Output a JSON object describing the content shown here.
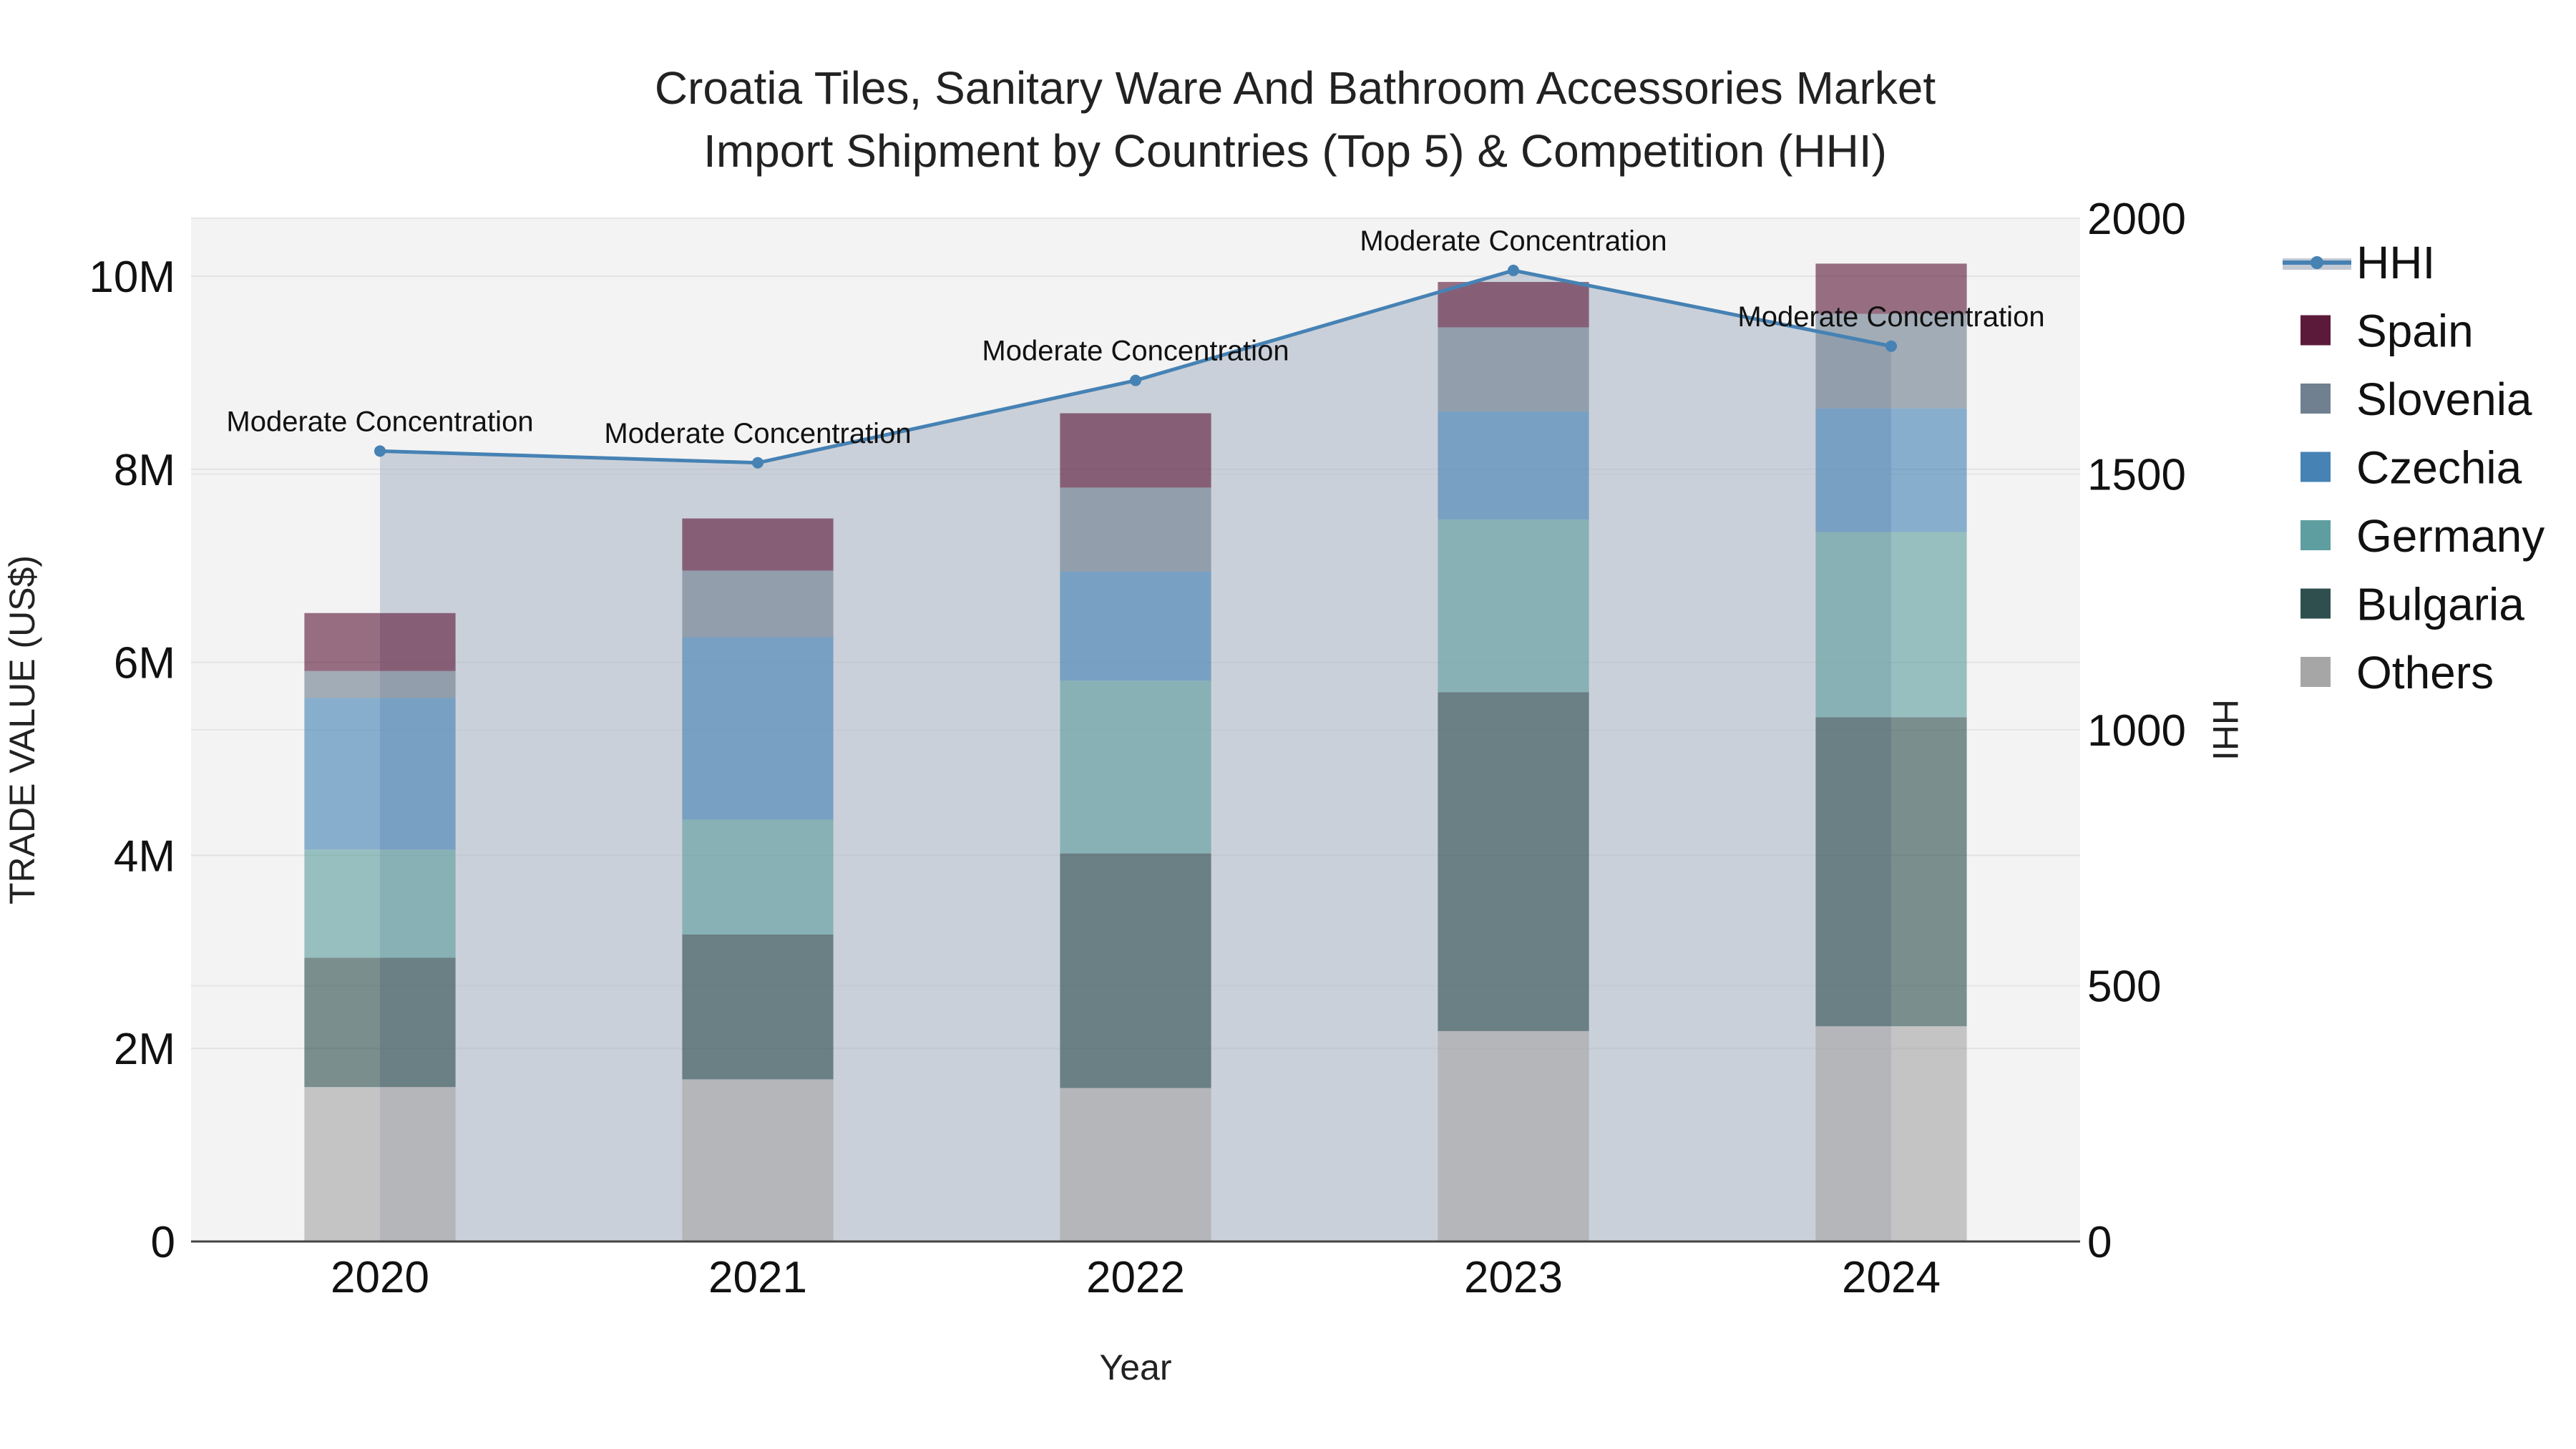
{
  "chart_data": {
    "type": "bar",
    "title_line1": "Croatia Tiles, Sanitary Ware And Bathroom Accessories Market",
    "title_line2": "Import Shipment by Countries (Top 5) & Competition (HHI)",
    "xlabel": "Year",
    "ylabel": "TRADE VALUE (US$)",
    "y2label": "HHI",
    "categories": [
      "2020",
      "2021",
      "2022",
      "2023",
      "2024"
    ],
    "ylim": [
      0,
      10600000
    ],
    "y2lim": [
      0,
      2000
    ],
    "yticks": [
      {
        "value": 0,
        "label": "0"
      },
      {
        "value": 2000000,
        "label": "2M"
      },
      {
        "value": 4000000,
        "label": "4M"
      },
      {
        "value": 6000000,
        "label": "6M"
      },
      {
        "value": 8000000,
        "label": "8M"
      },
      {
        "value": 10000000,
        "label": "10M"
      }
    ],
    "y2ticks": [
      {
        "value": 0,
        "label": "0"
      },
      {
        "value": 500,
        "label": "500"
      },
      {
        "value": 1000,
        "label": "1000"
      },
      {
        "value": 1500,
        "label": "1500"
      },
      {
        "value": 2000,
        "label": "2000"
      }
    ],
    "series": [
      {
        "name": "Others",
        "color": "#a6a6a6",
        "values": [
          1600000,
          1680000,
          1590000,
          2180000,
          2230000
        ]
      },
      {
        "name": "Bulgaria",
        "color": "#2f4f4f",
        "values": [
          1340000,
          1500000,
          2430000,
          3510000,
          3200000
        ]
      },
      {
        "name": "Germany",
        "color": "#5f9ea0",
        "values": [
          1120000,
          1190000,
          1790000,
          1790000,
          1920000
        ]
      },
      {
        "name": "Czechia",
        "color": "#4682b4",
        "values": [
          1570000,
          1890000,
          1130000,
          1120000,
          1280000
        ]
      },
      {
        "name": "Slovenia",
        "color": "#708090",
        "values": [
          280000,
          690000,
          870000,
          870000,
          980000
        ]
      },
      {
        "name": "Spain",
        "color": "#5c1a3a",
        "values": [
          600000,
          540000,
          770000,
          470000,
          520000
        ]
      }
    ],
    "hhi": {
      "name": "HHI",
      "color": "#4682b4",
      "values": [
        1545,
        1522,
        1683,
        1898,
        1750
      ],
      "labels": [
        "Moderate Concentration",
        "Moderate Concentration",
        "Moderate Concentration",
        "Moderate Concentration",
        "Moderate Concentration"
      ]
    },
    "legend_position": "right",
    "legend": [
      "HHI",
      "Spain",
      "Slovenia",
      "Czechia",
      "Germany",
      "Bulgaria",
      "Others"
    ]
  }
}
